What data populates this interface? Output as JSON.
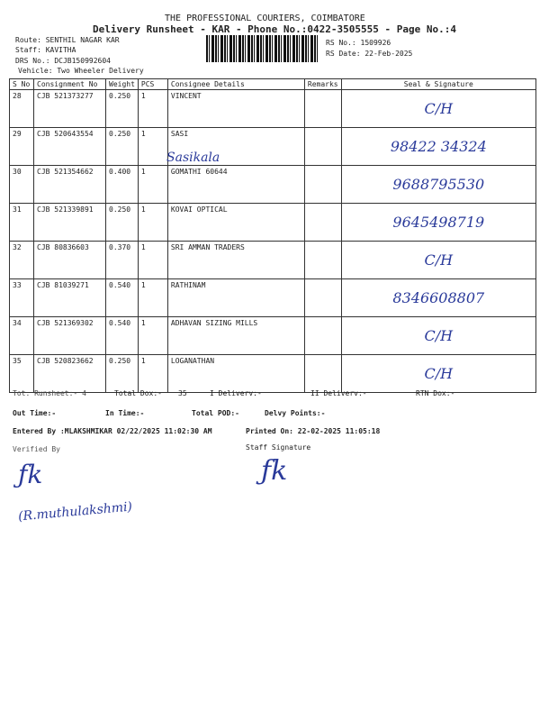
{
  "header": {
    "company": "THE PROFESSIONAL COURIERS, COIMBATORE",
    "title": "Delivery Runsheet - KAR - Phone No.:0422-3505555 - Page No.:4",
    "route": "Route: SENTHIL NAGAR KAR",
    "staff": "Staff: KAVITHA",
    "drs": "DRS No.: DCJB150992604",
    "vehicle": "Vehicle: Two Wheeler Delivery",
    "rs_no": "RS No.: 1509926",
    "rs_date": "RS Date: 22-Feb-2025"
  },
  "columns": [
    "S No",
    "Consignment No",
    "Weight",
    "PCS",
    "Consignee Details",
    "Remarks",
    "Seal & Signature"
  ],
  "rows": [
    {
      "sno": "28",
      "cn": "CJB 521373277",
      "wt": "0.250",
      "pcs": "1",
      "name": "VINCENT",
      "sign": "C/H"
    },
    {
      "sno": "29",
      "cn": "CJB 520643554",
      "wt": "0.250",
      "pcs": "1",
      "name": "SASI",
      "sign": "98422 34324",
      "extra": "Sasikala"
    },
    {
      "sno": "30",
      "cn": "CJB 521354662",
      "wt": "0.400",
      "pcs": "1",
      "name": "GOMATHI 60644",
      "sign": "9688795530"
    },
    {
      "sno": "31",
      "cn": "CJB 521339891",
      "wt": "0.250",
      "pcs": "1",
      "name": "KOVAI OPTICAL",
      "sign": "9645498719"
    },
    {
      "sno": "32",
      "cn": "CJB 80836603",
      "wt": "0.370",
      "pcs": "1",
      "name": "SRI AMMAN TRADERS",
      "sign": "C/H"
    },
    {
      "sno": "33",
      "cn": "CJB 81039271",
      "wt": "0.540",
      "pcs": "1",
      "name": "RATHINAM",
      "sign": "8346608807"
    },
    {
      "sno": "34",
      "cn": "CJB 521369302",
      "wt": "0.540",
      "pcs": "1",
      "name": "ADHAVAN SIZING MILLS",
      "sign": "C/H"
    },
    {
      "sno": "35",
      "cn": "CJB 520823662",
      "wt": "0.250",
      "pcs": "1",
      "name": "LOGANATHAN",
      "sign": "C/H"
    }
  ],
  "footer": {
    "tot_runsheet": "Tot. Runsheet:- 4",
    "total_dox": "Total Dox:-",
    "total_dox_val": "35",
    "i_delivery": "I Deliverv:-",
    "ii_delivery": "II Deliverv:-",
    "rtn": "RTN Dox:-",
    "out_time": "Out Time:-",
    "in_time": "In Time:-",
    "total_pod": "Total POD:-",
    "delvy_points": "Delvy Points:-",
    "entered_by": "Entered By :MLAKSHMIKAR 02/22/2025 11:02:30 AM",
    "printed_on": "Printed On: 22-02-2025 11:05:18",
    "verified_by": "Verified By",
    "staff_signature": "Staff Signature",
    "verifier_name": "(R.muthulakshmi)"
  }
}
